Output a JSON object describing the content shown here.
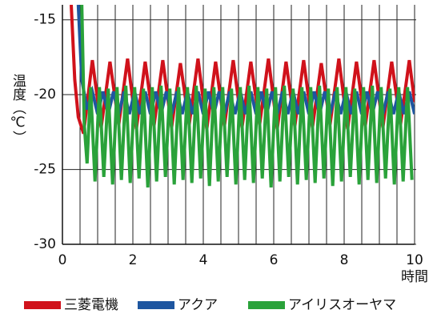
{
  "chart_data": {
    "type": "line",
    "ylabel": "温度（℃）",
    "xlabel": "時間",
    "xlim": [
      0,
      10
    ],
    "xticks": [
      0,
      2,
      4,
      6,
      8,
      10
    ],
    "xgrid": [
      0,
      0.5,
      1,
      1.5,
      2,
      2.5,
      3,
      3.5,
      4,
      4.5,
      5,
      5.5,
      6,
      6.5,
      7,
      7.5,
      8,
      8.5,
      9,
      9.5,
      10
    ],
    "ylim": [
      -30,
      -14
    ],
    "yticks": [
      -15,
      -20,
      -25,
      -30
    ],
    "grid": true,
    "legend": "bottom",
    "series": [
      {
        "name": "三菱電機",
        "color": "#d0121b",
        "x": [
          0.25,
          0.35,
          0.45,
          0.6,
          0.85,
          1.1,
          1.35,
          1.6,
          1.85,
          2.1,
          2.35,
          2.6,
          2.85,
          3.1,
          3.35,
          3.6,
          3.85,
          4.1,
          4.35,
          4.6,
          4.85,
          5.1,
          5.35,
          5.6,
          5.85,
          6.1,
          6.35,
          6.6,
          6.85,
          7.1,
          7.35,
          7.6,
          7.85,
          8.1,
          8.35,
          8.6,
          8.85,
          9.1,
          9.35,
          9.6,
          9.85,
          10
        ],
        "values": [
          -14,
          -19,
          -21.5,
          -22.6,
          -17.7,
          -22.2,
          -17.8,
          -22.0,
          -17.6,
          -22.3,
          -17.8,
          -22.1,
          -17.7,
          -22.2,
          -17.9,
          -22.0,
          -17.6,
          -22.3,
          -17.8,
          -22.1,
          -17.7,
          -22.2,
          -17.8,
          -22.0,
          -17.6,
          -22.3,
          -17.8,
          -22.1,
          -17.7,
          -22.2,
          -17.9,
          -22.0,
          -17.6,
          -22.3,
          -17.8,
          -22.1,
          -17.7,
          -22.2,
          -17.8,
          -22.0,
          -17.7,
          -20.5
        ]
      },
      {
        "name": "アクア",
        "color": "#1e56a0",
        "x": [
          0.45,
          0.55,
          0.7,
          0.85,
          1,
          1.15,
          1.3,
          1.45,
          1.6,
          1.75,
          1.9,
          2.05,
          2.2,
          2.35,
          2.5,
          2.65,
          2.8,
          2.95,
          3.1,
          3.25,
          3.4,
          3.55,
          3.7,
          3.85,
          4,
          4.15,
          4.3,
          4.45,
          4.6,
          4.75,
          4.9,
          5.05,
          5.2,
          5.35,
          5.5,
          5.65,
          5.8,
          5.95,
          6.1,
          6.25,
          6.4,
          6.55,
          6.7,
          6.85,
          7,
          7.15,
          7.3,
          7.45,
          7.6,
          7.75,
          7.9,
          8.05,
          8.2,
          8.35,
          8.5,
          8.65,
          8.8,
          8.95,
          9.1,
          9.25,
          9.4,
          9.55,
          9.7,
          9.85,
          10
        ],
        "values": [
          -14,
          -19,
          -21,
          -19.8,
          -21.3,
          -19.8,
          -21.3,
          -19.8,
          -21.3,
          -19.8,
          -21.3,
          -19.8,
          -21.3,
          -19.8,
          -21.3,
          -19.8,
          -21.3,
          -19.8,
          -21.3,
          -19.8,
          -21.3,
          -19.8,
          -21.3,
          -19.8,
          -21.3,
          -19.8,
          -21.3,
          -19.8,
          -21.3,
          -19.8,
          -21.3,
          -19.8,
          -21.3,
          -19.8,
          -21.3,
          -19.8,
          -21.3,
          -19.8,
          -21.3,
          -19.8,
          -21.3,
          -19.8,
          -21.3,
          -19.8,
          -21.3,
          -19.8,
          -21.3,
          -19.8,
          -21.3,
          -19.8,
          -21.3,
          -19.8,
          -21.3,
          -19.8,
          -21.3,
          -19.8,
          -21.3,
          -19.8,
          -21.3,
          -19.8,
          -21.3,
          -19.8,
          -21.3,
          -19.8,
          -21.3
        ]
      },
      {
        "name": "アイリスオーヤマ",
        "color": "#2aa23a",
        "x": [
          0.55,
          0.62,
          0.7,
          0.8,
          0.925,
          1.05,
          1.175,
          1.3,
          1.425,
          1.55,
          1.675,
          1.8,
          1.925,
          2.05,
          2.175,
          2.3,
          2.425,
          2.55,
          2.675,
          2.8,
          2.925,
          3.05,
          3.175,
          3.3,
          3.425,
          3.55,
          3.675,
          3.8,
          3.925,
          4.05,
          4.175,
          4.3,
          4.425,
          4.55,
          4.675,
          4.8,
          4.925,
          5.05,
          5.175,
          5.3,
          5.425,
          5.55,
          5.675,
          5.8,
          5.925,
          6.05,
          6.175,
          6.3,
          6.425,
          6.55,
          6.675,
          6.8,
          6.925,
          7.05,
          7.175,
          7.3,
          7.425,
          7.55,
          7.675,
          7.8,
          7.925,
          8.05,
          8.175,
          8.3,
          8.425,
          8.55,
          8.675,
          8.8,
          8.925,
          9.05,
          9.175,
          9.3,
          9.425,
          9.55,
          9.675,
          9.8,
          9.925
        ],
        "values": [
          -14,
          -22,
          -24.6,
          -19.5,
          -25.8,
          -19.5,
          -25.5,
          -19.6,
          -26.0,
          -19.5,
          -25.7,
          -19.4,
          -25.9,
          -19.5,
          -25.6,
          -19.6,
          -26.2,
          -19.5,
          -25.8,
          -19.4,
          -25.5,
          -19.6,
          -26.0,
          -19.5,
          -25.7,
          -19.5,
          -25.9,
          -19.4,
          -25.6,
          -19.6,
          -26.1,
          -19.5,
          -25.8,
          -19.5,
          -25.5,
          -19.6,
          -26.0,
          -19.5,
          -25.7,
          -19.4,
          -25.9,
          -19.5,
          -25.6,
          -19.6,
          -26.2,
          -19.5,
          -25.8,
          -19.4,
          -25.5,
          -19.6,
          -26.0,
          -19.5,
          -25.7,
          -19.5,
          -25.9,
          -19.4,
          -25.6,
          -19.6,
          -26.1,
          -19.5,
          -25.8,
          -19.5,
          -25.5,
          -19.6,
          -26.0,
          -19.5,
          -25.7,
          -19.4,
          -25.9,
          -19.5,
          -25.6,
          -19.6,
          -26.0,
          -19.5,
          -25.8,
          -19.5,
          -25.7
        ]
      }
    ]
  }
}
